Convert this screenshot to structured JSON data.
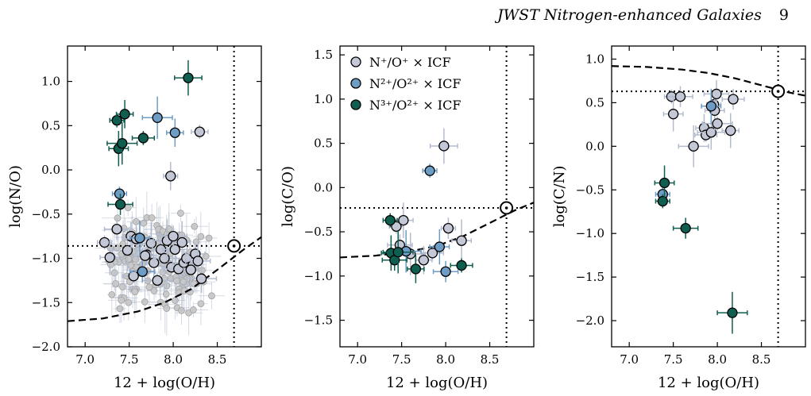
{
  "header": {
    "title": "JWST Nitrogen-enhanced Galaxies",
    "page": "9"
  },
  "legend": {
    "entries": [
      {
        "label": "N⁺/O⁺ × ICF",
        "color": "#c4c7d6"
      },
      {
        "label": "N²⁺/O²⁺ × ICF",
        "color": "#6d9dc5"
      },
      {
        "label": "N³⁺/O²⁺ × ICF",
        "color": "#0f5e4f"
      }
    ]
  },
  "colors": {
    "n1": "#c4c7d6",
    "n2": "#6d9dc5",
    "n3": "#0f5e4f",
    "n1_err": "#b3bccf",
    "bg_sample": "#c9c9c9"
  },
  "chart_data": [
    {
      "type": "scatter",
      "xlabel": "12 + log(O/H)",
      "ylabel": "log(N/O)",
      "xlim": [
        6.8,
        9.0
      ],
      "ylim": [
        -2.0,
        1.4
      ],
      "xticks": [
        "7.0",
        "7.5",
        "8.0",
        "8.5"
      ],
      "yticks": [
        "−2.0",
        "−1.5",
        "−1.0",
        "−0.5",
        "0.0",
        "0.5",
        "1.0"
      ],
      "solar": {
        "x": 8.69,
        "y": -0.86
      },
      "model_curve": {
        "x": [
          6.8,
          7.2,
          7.6,
          7.9,
          8.2,
          8.5,
          8.8,
          9.0
        ],
        "y": [
          -1.71,
          -1.68,
          -1.6,
          -1.5,
          -1.35,
          -1.13,
          -0.9,
          -0.76
        ]
      },
      "series": [
        {
          "name": "N⁺/O⁺ × ICF",
          "points": [
            [
              7.22,
              -0.82
            ],
            [
              7.28,
              -0.99
            ],
            [
              7.36,
              -0.67
            ],
            [
              7.48,
              -0.91
            ],
            [
              7.52,
              -0.75
            ],
            [
              7.55,
              -1.2
            ],
            [
              7.58,
              -0.78
            ],
            [
              7.7,
              -0.96
            ],
            [
              7.75,
              -0.83
            ],
            [
              7.78,
              -1.05
            ],
            [
              7.82,
              -1.25
            ],
            [
              7.86,
              -0.9
            ],
            [
              7.9,
              -1.0
            ],
            [
              7.93,
              -0.8
            ],
            [
              7.97,
              -0.07
            ],
            [
              7.98,
              -1.1
            ],
            [
              8.02,
              -0.9
            ],
            [
              8.06,
              -1.12
            ],
            [
              8.1,
              -0.82
            ],
            [
              8.12,
              -1.05
            ],
            [
              8.15,
              -1.0
            ],
            [
              8.2,
              -1.13
            ],
            [
              8.25,
              -0.95
            ],
            [
              8.28,
              -1.03
            ],
            [
              8.32,
              -1.23
            ],
            [
              8.3,
              0.43
            ],
            [
              7.68,
              -0.97
            ],
            [
              8.0,
              -0.75
            ]
          ]
        },
        {
          "name": "N²⁺/O²⁺ × ICF",
          "points": [
            [
              7.39,
              -0.27
            ],
            [
              7.62,
              -0.77
            ],
            [
              7.65,
              -1.15
            ],
            [
              7.82,
              0.59
            ],
            [
              8.02,
              0.42
            ]
          ]
        },
        {
          "name": "N³⁺/O²⁺ × ICF",
          "points": [
            [
              7.36,
              0.56
            ],
            [
              7.38,
              0.24
            ],
            [
              7.4,
              -0.39
            ],
            [
              7.42,
              0.3
            ],
            [
              7.45,
              0.63
            ],
            [
              7.66,
              0.36
            ],
            [
              8.17,
              1.04
            ]
          ]
        }
      ]
    },
    {
      "type": "scatter",
      "xlabel": "12 + log(O/H)",
      "ylabel": "log(C/O)",
      "xlim": [
        6.8,
        9.0
      ],
      "ylim": [
        -1.8,
        1.6
      ],
      "xticks": [
        "7.0",
        "7.5",
        "8.0",
        "8.5"
      ],
      "yticks": [
        "−1.5",
        "−1.0",
        "−0.5",
        "0.0",
        "0.5",
        "1.0",
        "1.5"
      ],
      "solar": {
        "x": 8.69,
        "y": -0.23
      },
      "model_curve": {
        "x": [
          6.8,
          7.2,
          7.6,
          7.9,
          8.2,
          8.5,
          8.8,
          9.0
        ],
        "y": [
          -0.79,
          -0.77,
          -0.72,
          -0.66,
          -0.55,
          -0.4,
          -0.25,
          -0.17
        ]
      },
      "series": [
        {
          "name": "N⁺/O⁺ × ICF",
          "points": [
            [
              7.44,
              -0.44
            ],
            [
              7.52,
              -0.37
            ],
            [
              7.48,
              -0.65
            ],
            [
              7.6,
              -0.75
            ],
            [
              7.75,
              -0.82
            ],
            [
              7.85,
              -0.74
            ],
            [
              7.98,
              0.47
            ],
            [
              8.03,
              -0.46
            ],
            [
              8.18,
              -0.6
            ]
          ]
        },
        {
          "name": "N²⁺/O²⁺ × ICF",
          "points": [
            [
              7.82,
              0.19
            ],
            [
              7.93,
              -0.67
            ],
            [
              8.0,
              -0.95
            ],
            [
              7.55,
              -0.72
            ]
          ]
        },
        {
          "name": "N³⁺/O²⁺ × ICF",
          "points": [
            [
              7.37,
              -0.37
            ],
            [
              7.38,
              -0.74
            ],
            [
              7.42,
              -0.82
            ],
            [
              7.46,
              -0.73
            ],
            [
              7.66,
              -0.92
            ],
            [
              8.18,
              -0.88
            ]
          ]
        }
      ]
    },
    {
      "type": "scatter",
      "xlabel": "12 + log(O/H)",
      "ylabel": "log(C/N)",
      "xlim": [
        6.8,
        9.0
      ],
      "ylim": [
        -2.3,
        1.15
      ],
      "xticks": [
        "7.0",
        "7.5",
        "8.0",
        "8.5"
      ],
      "yticks": [
        "−2.0",
        "−1.5",
        "−1.0",
        "−0.5",
        "0.0",
        "0.5",
        "1.0"
      ],
      "solar": {
        "x": 8.69,
        "y": 0.63
      },
      "model_curve": {
        "x": [
          6.8,
          7.2,
          7.6,
          7.9,
          8.2,
          8.5,
          8.8,
          9.0
        ],
        "y": [
          0.92,
          0.91,
          0.88,
          0.84,
          0.78,
          0.7,
          0.62,
          0.58
        ]
      },
      "series": [
        {
          "name": "N⁺/O⁺ × ICF",
          "points": [
            [
              7.48,
              0.57
            ],
            [
              7.5,
              0.37
            ],
            [
              7.58,
              0.57
            ],
            [
              7.73,
              0.0
            ],
            [
              7.85,
              0.21
            ],
            [
              7.87,
              0.13
            ],
            [
              7.93,
              0.16
            ],
            [
              7.96,
              0.48
            ],
            [
              7.97,
              0.41
            ],
            [
              7.99,
              0.6
            ],
            [
              8.0,
              0.26
            ],
            [
              8.15,
              0.18
            ],
            [
              8.18,
              0.54
            ]
          ]
        },
        {
          "name": "N²⁺/O²⁺ × ICF",
          "points": [
            [
              7.38,
              -0.55
            ],
            [
              7.93,
              0.46
            ]
          ]
        },
        {
          "name": "N³⁺/O²⁺ × ICF",
          "points": [
            [
              7.38,
              -0.63
            ],
            [
              7.4,
              -0.42
            ],
            [
              7.64,
              -0.94
            ],
            [
              8.17,
              -1.91
            ]
          ]
        }
      ]
    }
  ]
}
